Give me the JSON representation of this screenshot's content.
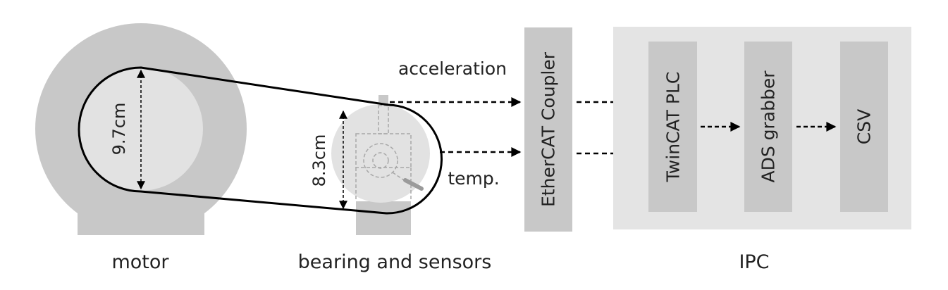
{
  "diagram": {
    "captions": {
      "motor": "motor",
      "bearing": "bearing and sensors",
      "ipc": "IPC"
    },
    "dimensions": {
      "motor_pulley": "9.7cm",
      "bearing_pulley": "8.3cm"
    },
    "signals": {
      "acceleration": "acceleration",
      "temperature": "temp."
    },
    "blocks": {
      "coupler": "EtherCAT Coupler",
      "plc": "TwinCAT PLC",
      "grabber": "ADS grabber",
      "csv": "CSV"
    },
    "colors": {
      "housing": "#c8c8c8",
      "pulley": "#e2e2e2",
      "ipc_panel": "#e4e4e4",
      "block": "#c8c8c8",
      "line": "#000000",
      "sensor_outline": "#a8a8a8"
    }
  }
}
